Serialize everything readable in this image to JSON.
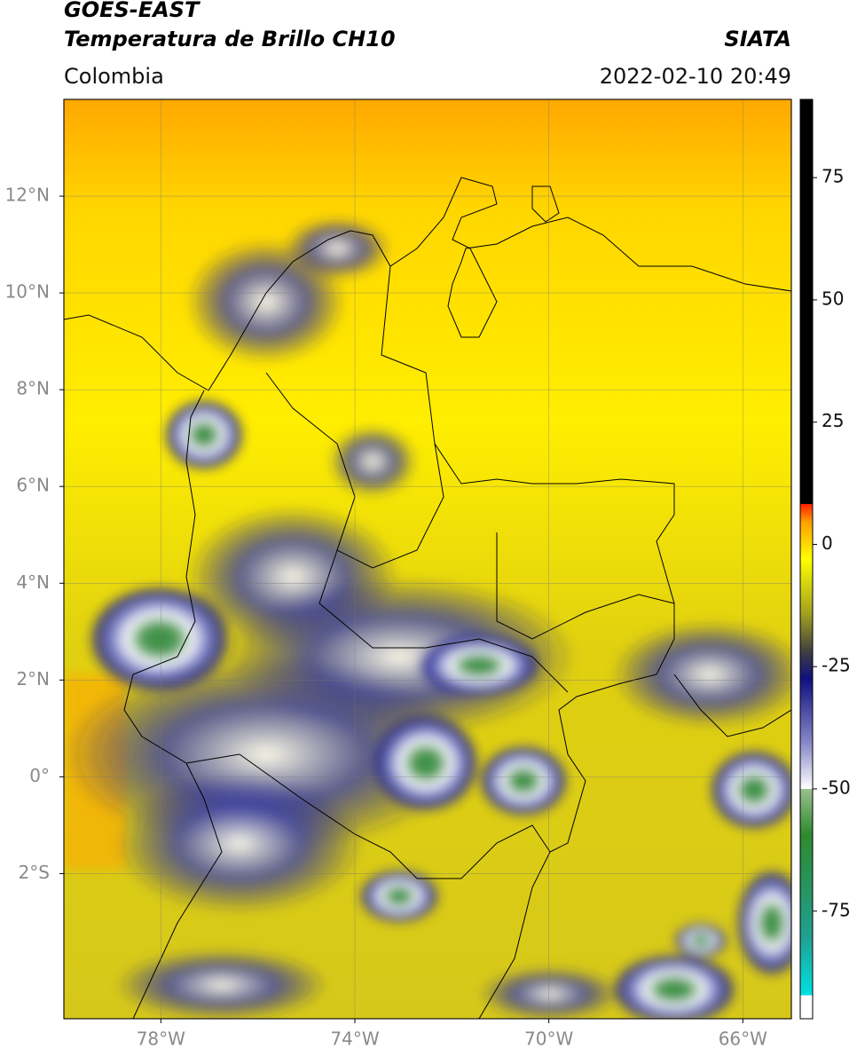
{
  "chart_data": {
    "type": "map",
    "title": "GOES-EAST",
    "subtitle": "Temperatura de Brillo CH10",
    "region": "Colombia",
    "source": "SIATA",
    "timestamp": "2022-02-10 20:49",
    "xlim": [
      -80,
      -65
    ],
    "ylim": [
      -5,
      14
    ],
    "xticks": [
      {
        "value": -78,
        "label": "78°W"
      },
      {
        "value": -74,
        "label": "74°W"
      },
      {
        "value": -70,
        "label": "70°W"
      },
      {
        "value": -66,
        "label": "66°W"
      }
    ],
    "yticks": [
      {
        "value": 12,
        "label": "12°N"
      },
      {
        "value": 10,
        "label": "10°N"
      },
      {
        "value": 8,
        "label": "8°N"
      },
      {
        "value": 6,
        "label": "6°N"
      },
      {
        "value": 4,
        "label": "4°N"
      },
      {
        "value": 2,
        "label": "2°N"
      },
      {
        "value": 0,
        "label": "0°"
      },
      {
        "value": -2,
        "label": "2°S"
      }
    ],
    "grid": true,
    "colorbar": {
      "lim": [
        -97,
        91
      ],
      "ticks": [
        75,
        50,
        25,
        0,
        -25,
        -50,
        -75
      ]
    }
  }
}
